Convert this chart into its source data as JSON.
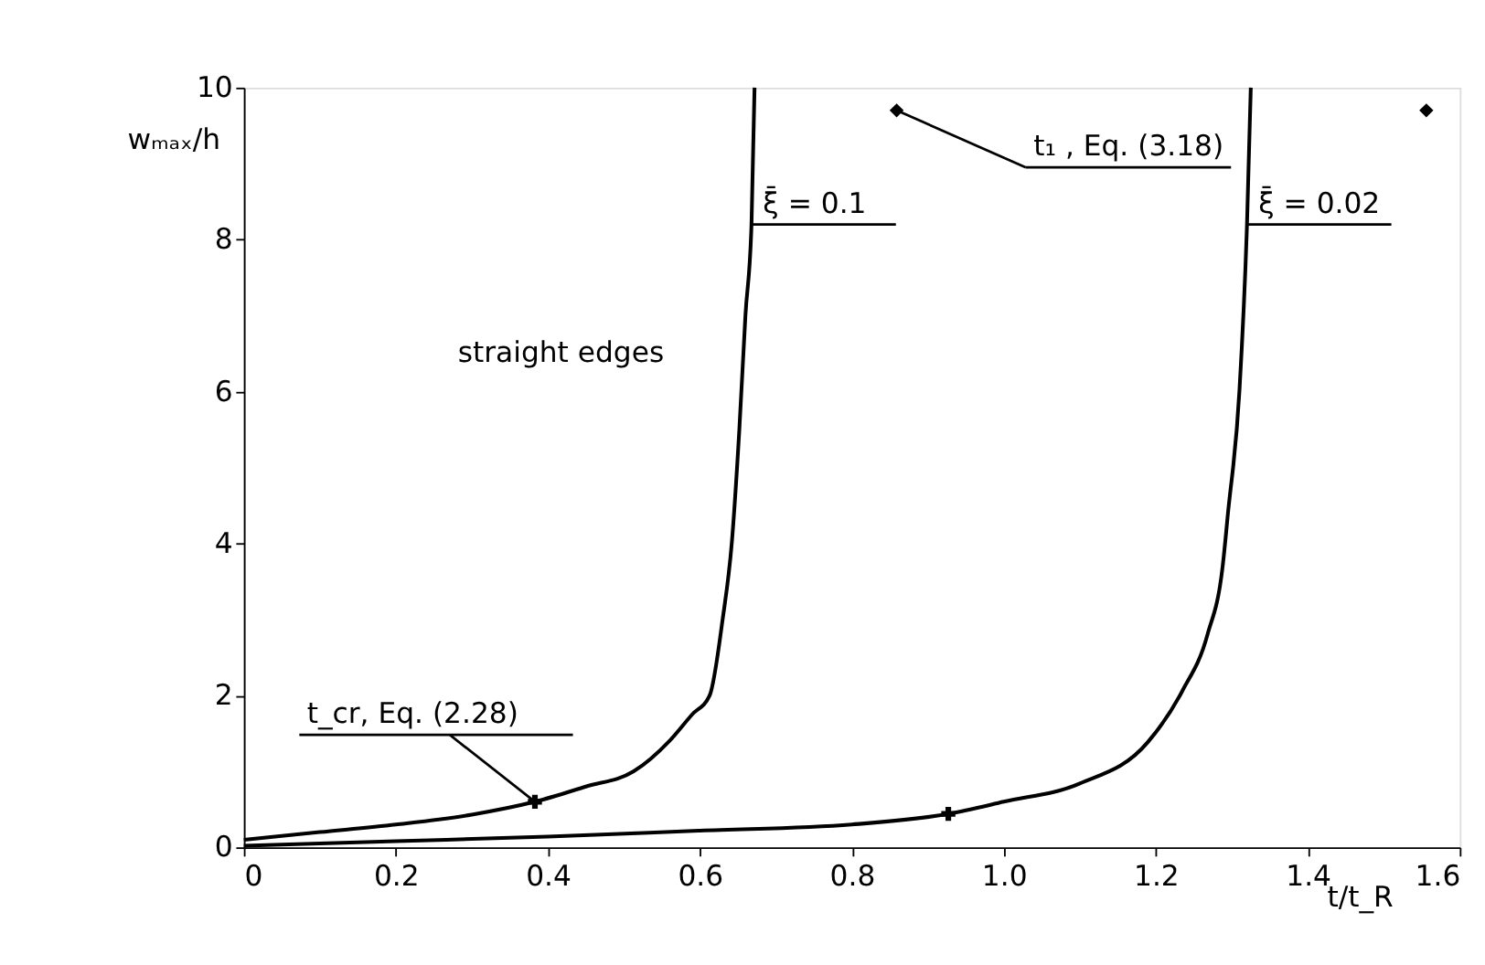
{
  "chart_data": {
    "type": "line",
    "xlabel": "t/t_R",
    "ylabel": "wₘₐₓ/h",
    "xlim": [
      0,
      1.6
    ],
    "ylim": [
      0,
      10
    ],
    "xticks": [
      {
        "value": 0,
        "label": "0"
      },
      0.2,
      0.4,
      0.6,
      0.8,
      {
        "value": 1,
        "label": "1.0"
      },
      1.2,
      1.4,
      1.6
    ],
    "yticks": [
      0,
      2,
      4,
      6,
      8,
      10
    ],
    "grid": false,
    "legend": false,
    "marker": "none",
    "line_style": "solid",
    "series": [
      {
        "name": "ξ̄ = 0.1",
        "color": "#000000",
        "x": [
          0,
          0.1,
          0.2,
          0.3,
          0.383,
          0.45,
          0.513,
          0.56,
          0.59,
          0.613,
          0.63,
          0.642,
          0.652,
          0.66,
          0.668,
          0.672
        ],
        "values": [
          0.1,
          0.2,
          0.3,
          0.43,
          0.6,
          0.8,
          1.0,
          1.4,
          1.75,
          2.0,
          3.0,
          4.0,
          5.5,
          7.0,
          8.2,
          10
        ]
      },
      {
        "name": "ξ̄ = 0.02",
        "color": "#000000",
        "x": [
          0,
          0.2,
          0.4,
          0.6,
          0.8,
          0.927,
          1.0,
          1.1,
          1.19,
          1.235,
          1.268,
          1.288,
          1.295,
          1.31,
          1.32,
          1.325
        ],
        "values": [
          0.02,
          0.08,
          0.14,
          0.22,
          0.3,
          0.44,
          0.6,
          0.84,
          1.39,
          2.06,
          2.8,
          3.7,
          4.4,
          6.0,
          8.2,
          10
        ]
      },
      {
        "type": "scatter",
        "marker": "diamond",
        "color": "#000000",
        "x": [
          0.859,
          1.556
        ],
        "values": [
          9.7,
          9.7
        ]
      },
      {
        "type": "scatter",
        "marker": "cross",
        "color": "#000000",
        "x": [
          0.383,
          0.927
        ],
        "values": [
          0.6,
          0.44
        ]
      }
    ],
    "annotations": [
      {
        "text": "t₁ , Eq. (3.18)",
        "x": 0.859,
        "y": 9.7
      },
      {
        "text": "t_cr, Eq. (2.28)",
        "x": 0.383,
        "y": 0.6
      },
      "straight edges"
    ]
  }
}
